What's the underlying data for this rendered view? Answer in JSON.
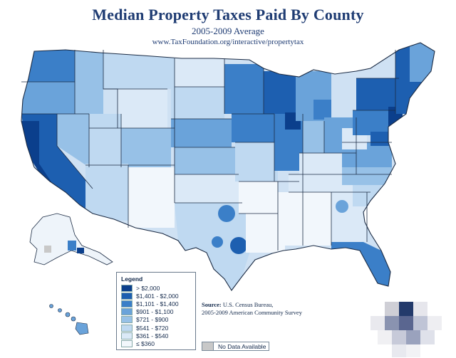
{
  "header": {
    "title": "Median Property Taxes Paid By County",
    "subtitle": "2005-2009 Average",
    "url": "www.TaxFoundation.org/interactive/propertytax"
  },
  "legend": {
    "title": "Legend",
    "items": [
      {
        "label": "> $2,000",
        "color": "#0b3f8c"
      },
      {
        "label": "$1,401 - $2,000",
        "color": "#1d5fb0"
      },
      {
        "label": "$1,101 - $1,400",
        "color": "#3b7fc8"
      },
      {
        "label": "$901 - $1,100",
        "color": "#6aa3da"
      },
      {
        "label": "$721 - $900",
        "color": "#97c1e7"
      },
      {
        "label": "$541 - $720",
        "color": "#bfd9f1"
      },
      {
        "label": "$361 - $540",
        "color": "#dbe9f7"
      },
      {
        "label": "≤ $360",
        "color": "#f2f7fc"
      }
    ],
    "no_data_label": "No Data Available",
    "no_data_color": "#c8c8c8"
  },
  "source": {
    "label": "Source:",
    "line1": "U.S. Census Bureau,",
    "line2": "2005-2009 American Community Survey"
  },
  "colors": {
    "border": "#1b2b44",
    "title": "#1f3c73"
  }
}
